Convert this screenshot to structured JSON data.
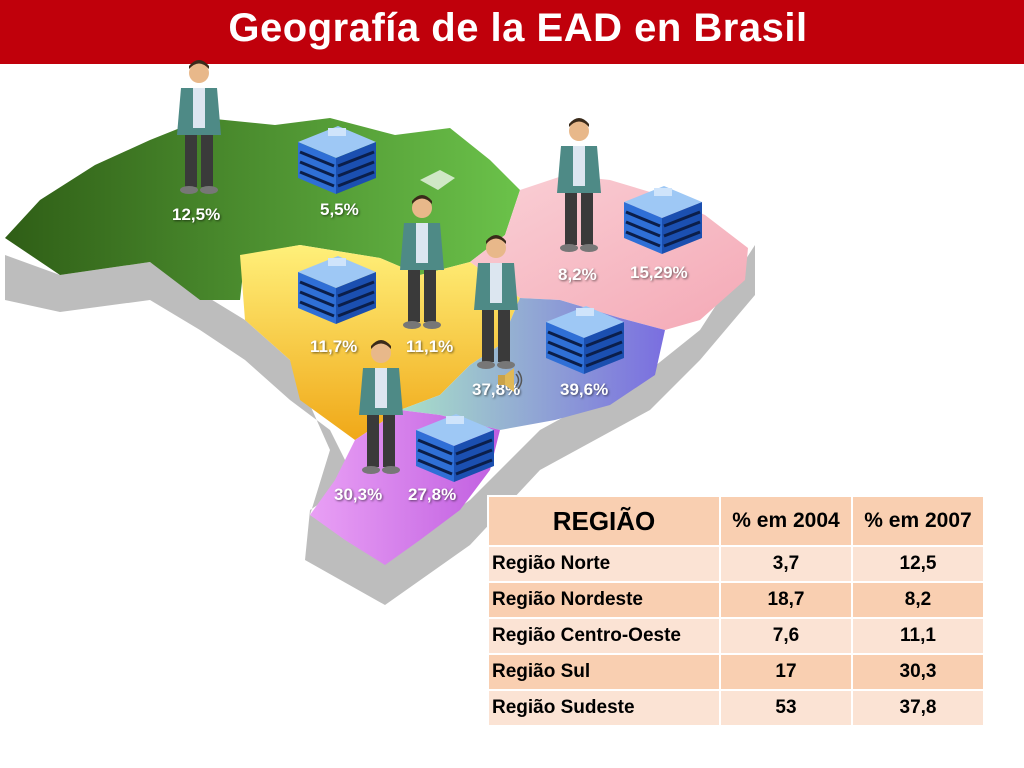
{
  "title": "Geografía de la EAD en Brasil",
  "regions_map": {
    "norte": {
      "people": "12,5%",
      "buildings": "5,5%",
      "color": "#4f8a2c"
    },
    "nordeste": {
      "people": "8,2%",
      "buildings": "15,29%",
      "color": "#f7b7c2"
    },
    "centro_oeste": {
      "people": "11,1%",
      "buildings": "11,7%",
      "color": "#f1c232"
    },
    "sudeste": {
      "people": "37,8%",
      "buildings": "39,6%",
      "color": "#8ab6e0"
    },
    "sul": {
      "people": "30,3%",
      "buildings": "27,8%",
      "color": "#d87ef0"
    }
  },
  "table": {
    "headers": [
      "REGIÃO",
      "% em 2004",
      "% em 2007"
    ],
    "rows": [
      [
        "Região Norte",
        "3,7",
        "12,5"
      ],
      [
        "Região Nordeste",
        "18,7",
        "8,2"
      ],
      [
        "Região Centro-Oeste",
        "7,6",
        "11,1"
      ],
      [
        "Região Sul",
        "17",
        "30,3"
      ],
      [
        "Região Sudeste",
        "53",
        "37,8"
      ]
    ]
  },
  "icons": [
    "person-icon",
    "building-icon",
    "speaker-icon"
  ]
}
